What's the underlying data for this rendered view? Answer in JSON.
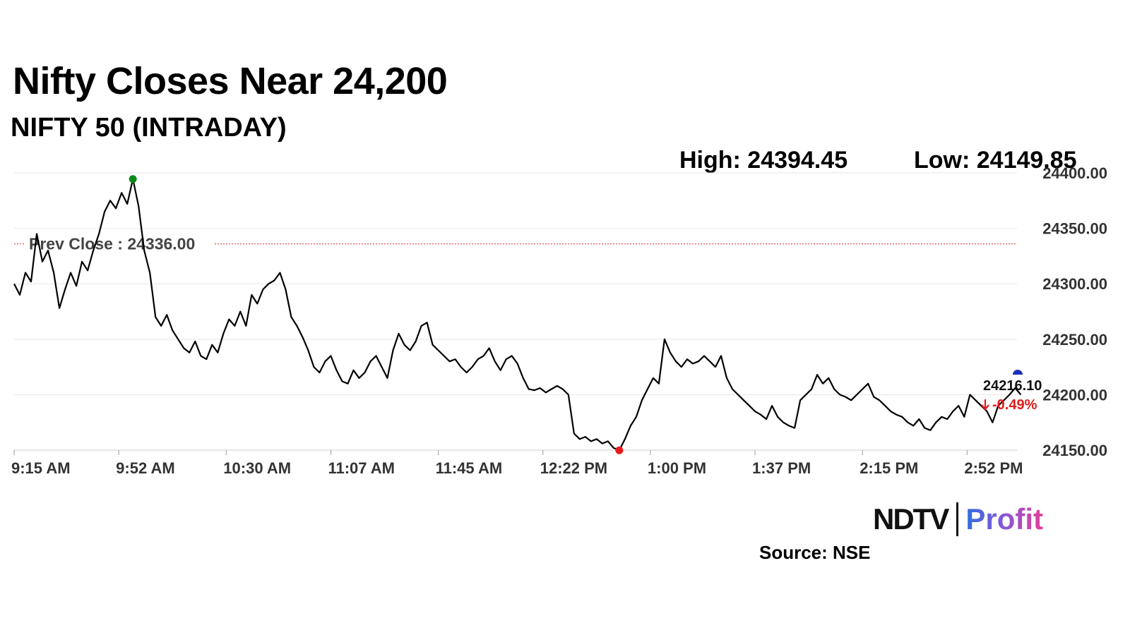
{
  "header": {
    "title": "Nifty Closes Near 24,200",
    "subtitle": "NIFTY 50 (INTRADAY)"
  },
  "stats": {
    "high_label": "High: 24394.45",
    "low_label": "Low: 24149.85"
  },
  "chart_data": {
    "type": "line",
    "ylim": [
      24150,
      24400
    ],
    "y_ticks": [
      24400,
      24350,
      24300,
      24250,
      24200,
      24150
    ],
    "y_tick_labels": [
      "24400.00",
      "24350.00",
      "24300.00",
      "24250.00",
      "24200.00",
      "24150.00"
    ],
    "x_tick_labels": [
      "9:15 AM",
      "9:52 AM",
      "10:30 AM",
      "11:07 AM",
      "11:45 AM",
      "12:22 PM",
      "1:00 PM",
      "1:37 PM",
      "2:15 PM",
      "2:52 PM"
    ],
    "prev_close": 24336.0,
    "prev_close_label": "Prev Close : 24336.00",
    "high": 24394.45,
    "low": 24149.85,
    "last_value_label": "24216.10",
    "change_label": "-0.49%",
    "series": [
      {
        "points": [
          [
            "9:15 AM",
            24300
          ],
          [
            "9:17 AM",
            24290
          ],
          [
            "9:19 AM",
            24310
          ],
          [
            "9:21 AM",
            24302
          ],
          [
            "9:23 AM",
            24345
          ],
          [
            "9:25 AM",
            24320
          ],
          [
            "9:27 AM",
            24330
          ],
          [
            "9:29 AM",
            24310
          ],
          [
            "9:31 AM",
            24278
          ],
          [
            "9:33 AM",
            24295
          ],
          [
            "9:35 AM",
            24310
          ],
          [
            "9:37 AM",
            24298
          ],
          [
            "9:39 AM",
            24320
          ],
          [
            "9:41 AM",
            24312
          ],
          [
            "9:43 AM",
            24330
          ],
          [
            "9:45 AM",
            24345
          ],
          [
            "9:47 AM",
            24365
          ],
          [
            "9:49 AM",
            24375
          ],
          [
            "9:51 AM",
            24368
          ],
          [
            "9:53 AM",
            24382
          ],
          [
            "9:55 AM",
            24372
          ],
          [
            "9:57 AM",
            24394.45
          ],
          [
            "9:59 AM",
            24370
          ],
          [
            "10:01 AM",
            24330
          ],
          [
            "10:03 AM",
            24310
          ],
          [
            "10:05 AM",
            24270
          ],
          [
            "10:07 AM",
            24262
          ],
          [
            "10:09 AM",
            24272
          ],
          [
            "10:11 AM",
            24258
          ],
          [
            "10:13 AM",
            24250
          ],
          [
            "10:15 AM",
            24242
          ],
          [
            "10:17 AM",
            24238
          ],
          [
            "10:19 AM",
            24248
          ],
          [
            "10:21 AM",
            24235
          ],
          [
            "10:23 AM",
            24232
          ],
          [
            "10:25 AM",
            24245
          ],
          [
            "10:27 AM",
            24238
          ],
          [
            "10:29 AM",
            24255
          ],
          [
            "10:31 AM",
            24268
          ],
          [
            "10:33 AM",
            24262
          ],
          [
            "10:35 AM",
            24275
          ],
          [
            "10:37 AM",
            24262
          ],
          [
            "10:39 AM",
            24290
          ],
          [
            "10:41 AM",
            24282
          ],
          [
            "10:43 AM",
            24295
          ],
          [
            "10:45 AM",
            24300
          ],
          [
            "10:47 AM",
            24303
          ],
          [
            "10:49 AM",
            24310
          ],
          [
            "10:51 AM",
            24295
          ],
          [
            "10:53 AM",
            24270
          ],
          [
            "10:55 AM",
            24262
          ],
          [
            "10:57 AM",
            24252
          ],
          [
            "10:59 AM",
            24240
          ],
          [
            "11:01 AM",
            24225
          ],
          [
            "11:03 AM",
            24220
          ],
          [
            "11:05 AM",
            24230
          ],
          [
            "11:07 AM",
            24235
          ],
          [
            "11:09 AM",
            24222
          ],
          [
            "11:11 AM",
            24212
          ],
          [
            "11:13 AM",
            24210
          ],
          [
            "11:15 AM",
            24222
          ],
          [
            "11:17 AM",
            24215
          ],
          [
            "11:19 AM",
            24220
          ],
          [
            "11:21 AM",
            24230
          ],
          [
            "11:23 AM",
            24235
          ],
          [
            "11:25 AM",
            24225
          ],
          [
            "11:27 AM",
            24215
          ],
          [
            "11:29 AM",
            24240
          ],
          [
            "11:31 AM",
            24255
          ],
          [
            "11:33 AM",
            24245
          ],
          [
            "11:35 AM",
            24240
          ],
          [
            "11:37 AM",
            24248
          ],
          [
            "11:39 AM",
            24262
          ],
          [
            "11:41 AM",
            24265
          ],
          [
            "11:43 AM",
            24245
          ],
          [
            "11:45 AM",
            24240
          ],
          [
            "11:47 AM",
            24235
          ],
          [
            "11:49 AM",
            24230
          ],
          [
            "11:51 AM",
            24232
          ],
          [
            "11:53 AM",
            24225
          ],
          [
            "11:55 AM",
            24220
          ],
          [
            "11:57 AM",
            24225
          ],
          [
            "11:59 AM",
            24232
          ],
          [
            "12:01 PM",
            24235
          ],
          [
            "12:03 PM",
            24242
          ],
          [
            "12:05 PM",
            24230
          ],
          [
            "12:07 PM",
            24222
          ],
          [
            "12:09 PM",
            24232
          ],
          [
            "12:11 PM",
            24235
          ],
          [
            "12:13 PM",
            24228
          ],
          [
            "12:15 PM",
            24215
          ],
          [
            "12:17 PM",
            24205
          ],
          [
            "12:19 PM",
            24204
          ],
          [
            "12:21 PM",
            24206
          ],
          [
            "12:23 PM",
            24202
          ],
          [
            "12:25 PM",
            24205
          ],
          [
            "12:27 PM",
            24208
          ],
          [
            "12:29 PM",
            24205
          ],
          [
            "12:31 PM",
            24200
          ],
          [
            "12:33 PM",
            24165
          ],
          [
            "12:35 PM",
            24160
          ],
          [
            "12:37 PM",
            24162
          ],
          [
            "12:39 PM",
            24158
          ],
          [
            "12:41 PM",
            24160
          ],
          [
            "12:43 PM",
            24156
          ],
          [
            "12:45 PM",
            24158
          ],
          [
            "12:47 PM",
            24152
          ],
          [
            "12:49 PM",
            24149.85
          ],
          [
            "12:51 PM",
            24160
          ],
          [
            "12:53 PM",
            24172
          ],
          [
            "12:55 PM",
            24180
          ],
          [
            "12:57 PM",
            24195
          ],
          [
            "12:59 PM",
            24205
          ],
          [
            "1:01 PM",
            24215
          ],
          [
            "1:03 PM",
            24210
          ],
          [
            "1:05 PM",
            24250
          ],
          [
            "1:07 PM",
            24238
          ],
          [
            "1:09 PM",
            24230
          ],
          [
            "1:11 PM",
            24225
          ],
          [
            "1:13 PM",
            24232
          ],
          [
            "1:15 PM",
            24228
          ],
          [
            "1:17 PM",
            24230
          ],
          [
            "1:19 PM",
            24235
          ],
          [
            "1:21 PM",
            24230
          ],
          [
            "1:23 PM",
            24225
          ],
          [
            "1:25 PM",
            24235
          ],
          [
            "1:27 PM",
            24215
          ],
          [
            "1:29 PM",
            24205
          ],
          [
            "1:31 PM",
            24200
          ],
          [
            "1:33 PM",
            24195
          ],
          [
            "1:35 PM",
            24190
          ],
          [
            "1:37 PM",
            24185
          ],
          [
            "1:39 PM",
            24182
          ],
          [
            "1:41 PM",
            24178
          ],
          [
            "1:43 PM",
            24190
          ],
          [
            "1:45 PM",
            24180
          ],
          [
            "1:47 PM",
            24175
          ],
          [
            "1:49 PM",
            24172
          ],
          [
            "1:51 PM",
            24170
          ],
          [
            "1:53 PM",
            24195
          ],
          [
            "1:55 PM",
            24200
          ],
          [
            "1:57 PM",
            24205
          ],
          [
            "1:59 PM",
            24218
          ],
          [
            "2:01 PM",
            24210
          ],
          [
            "2:03 PM",
            24215
          ],
          [
            "2:05 PM",
            24205
          ],
          [
            "2:07 PM",
            24200
          ],
          [
            "2:09 PM",
            24198
          ],
          [
            "2:11 PM",
            24195
          ],
          [
            "2:13 PM",
            24200
          ],
          [
            "2:15 PM",
            24205
          ],
          [
            "2:17 PM",
            24210
          ],
          [
            "2:19 PM",
            24198
          ],
          [
            "2:21 PM",
            24195
          ],
          [
            "2:23 PM",
            24190
          ],
          [
            "2:25 PM",
            24185
          ],
          [
            "2:27 PM",
            24182
          ],
          [
            "2:29 PM",
            24180
          ],
          [
            "2:31 PM",
            24175
          ],
          [
            "2:33 PM",
            24172
          ],
          [
            "2:35 PM",
            24178
          ],
          [
            "2:37 PM",
            24170
          ],
          [
            "2:39 PM",
            24168
          ],
          [
            "2:41 PM",
            24175
          ],
          [
            "2:43 PM",
            24180
          ],
          [
            "2:45 PM",
            24178
          ],
          [
            "2:47 PM",
            24185
          ],
          [
            "2:49 PM",
            24190
          ],
          [
            "2:51 PM",
            24180
          ],
          [
            "2:53 PM",
            24200
          ],
          [
            "2:55 PM",
            24195
          ],
          [
            "2:57 PM",
            24190
          ],
          [
            "2:59 PM",
            24185
          ],
          [
            "3:01 PM",
            24175
          ],
          [
            "3:03 PM",
            24190
          ],
          [
            "3:05 PM",
            24195
          ],
          [
            "3:07 PM",
            24200
          ],
          [
            "3:09 PM",
            24206
          ],
          [
            "3:11 PM",
            24200
          ]
        ]
      }
    ]
  },
  "branding": {
    "ndtv": "NDTV",
    "profit": "Profit",
    "source": "Source: NSE"
  },
  "colors": {
    "line": "#000000",
    "prev_close": "#e05555",
    "high_marker": "#0a8a1a",
    "low_marker": "#e81b1b",
    "last_marker": "#1a2fb5",
    "change_negative": "#e01b1b",
    "axis_text": "#333333",
    "gridline": "#e6e6e6"
  }
}
